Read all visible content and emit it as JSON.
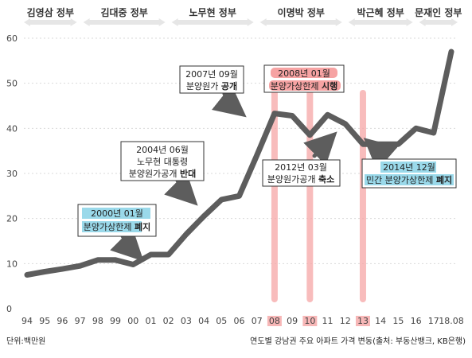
{
  "chart_data": {
    "type": "line",
    "x": [
      "94",
      "95",
      "96",
      "97",
      "98",
      "99",
      "00",
      "01",
      "02",
      "03",
      "04",
      "05",
      "06",
      "07",
      "08",
      "09",
      "10",
      "11",
      "12",
      "13",
      "14",
      "15",
      "16",
      "17",
      "18.08"
    ],
    "series": [
      {
        "values": [
          7.5,
          8.2,
          8.8,
          9.5,
          10.8,
          10.8,
          9.8,
          12.0,
          12.0,
          16.5,
          20.5,
          24.2,
          25.0,
          34.0,
          43.3,
          42.8,
          38.5,
          43.0,
          41.0,
          36.5,
          36.5,
          36.5,
          40.0,
          39.0,
          57.0
        ]
      }
    ],
    "ylim": [
      0,
      60
    ],
    "yticks": [
      0,
      10,
      20,
      30,
      40,
      50,
      60
    ],
    "highlight_years": [
      "08",
      "10",
      "13"
    ],
    "eras": [
      {
        "label": "김영삼 정부",
        "from": 0,
        "to": 3
      },
      {
        "label": "김대중 정부",
        "from": 3,
        "to": 8
      },
      {
        "label": "노무현 정부",
        "from": 8,
        "to": 13
      },
      {
        "label": "이명박 정부",
        "from": 13,
        "to": 18
      },
      {
        "label": "박근혜 정부",
        "from": 18,
        "to": 22
      },
      {
        "label": "문재인 정부",
        "from": 22,
        "to": 24
      }
    ],
    "annotations": [
      {
        "id": "a2000",
        "lines": [
          "2000년 01월",
          "분양가상한제 폐지"
        ],
        "bold_word": "폐지",
        "highlight": "blue"
      },
      {
        "id": "a2004",
        "lines": [
          "2004년 06월",
          "노무현 대통령",
          "분양원가공개 반대"
        ],
        "bold_word": "반대",
        "highlight": "none"
      },
      {
        "id": "a2007",
        "lines": [
          "2007년 09월",
          "분양원가 공개"
        ],
        "bold_word": "공개",
        "highlight": "none"
      },
      {
        "id": "a2008",
        "lines": [
          "2008년 01월",
          "분양가상한제 시행"
        ],
        "bold_word": "시행",
        "highlight": "red"
      },
      {
        "id": "a2012",
        "lines": [
          "2012년 03월",
          "분양원가공개 축소"
        ],
        "bold_word": "축소",
        "highlight": "none"
      },
      {
        "id": "a2014",
        "lines": [
          "2014년 12월",
          "민간 분양가상한제 폐지"
        ],
        "bold_word": "폐지",
        "highlight": "blue"
      }
    ],
    "footer_left": "단위:백만원",
    "footer_right": "연도별 강남권 주요 아파트 가격 변동(출처: 부동산뱅크, KB은행)",
    "colors": {
      "line": "#5d5d5d",
      "highlight_bar": "#f5a5a5",
      "blue_marker": "#9ad9ea",
      "red_marker": "#f6a3a3",
      "era_bar": "#e6e6e6",
      "grid": "#d9d9d9"
    }
  }
}
